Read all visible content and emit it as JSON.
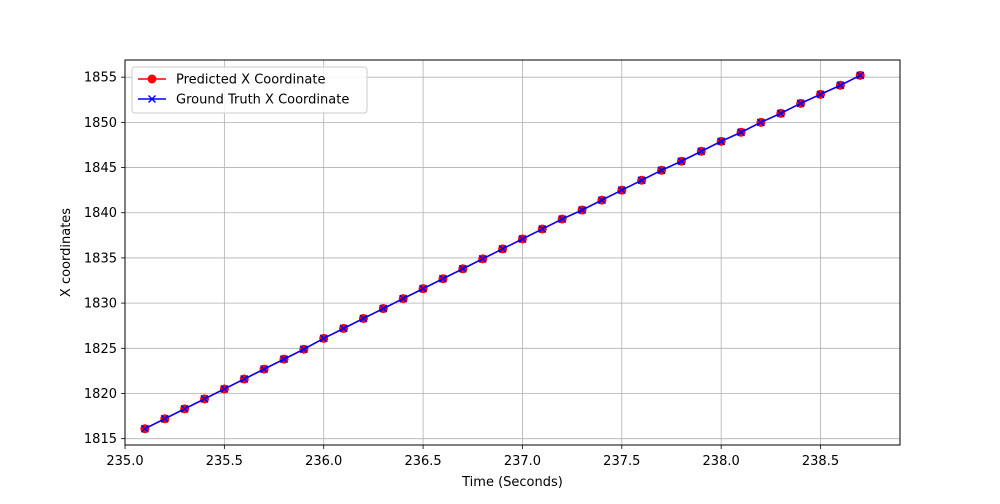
{
  "chart_data": {
    "type": "line",
    "xlabel": "Time (Seconds)",
    "ylabel": "X coordinates",
    "xlim": [
      235.0,
      238.9
    ],
    "ylim": [
      1814.3,
      1856.9
    ],
    "xticks": [
      235.0,
      235.5,
      236.0,
      236.5,
      237.0,
      237.5,
      238.0,
      238.5
    ],
    "xtick_labels": [
      "235.0",
      "235.5",
      "236.0",
      "236.5",
      "237.0",
      "237.5",
      "238.0",
      "238.5"
    ],
    "yticks": [
      1815,
      1820,
      1825,
      1830,
      1835,
      1840,
      1845,
      1850,
      1855
    ],
    "ytick_labels": [
      "1815",
      "1820",
      "1825",
      "1830",
      "1835",
      "1840",
      "1845",
      "1850",
      "1855"
    ],
    "grid": true,
    "legend_position": "upper-left",
    "x": [
      235.1,
      235.2,
      235.3,
      235.4,
      235.5,
      235.6,
      235.7,
      235.8,
      235.9,
      236.0,
      236.1,
      236.2,
      236.3,
      236.4,
      236.5,
      236.6,
      236.7,
      236.8,
      236.9,
      237.0,
      237.1,
      237.2,
      237.3,
      237.4,
      237.5,
      237.6,
      237.7,
      237.8,
      237.9,
      238.0,
      238.1,
      238.2,
      238.3,
      238.4,
      238.5,
      238.6,
      238.7
    ],
    "series": [
      {
        "name": "Predicted X Coordinate",
        "color": "#ff0000",
        "marker": "circle",
        "values": [
          1816.1,
          1817.2,
          1818.3,
          1819.4,
          1820.5,
          1821.6,
          1822.7,
          1823.8,
          1824.9,
          1826.1,
          1827.2,
          1828.3,
          1829.4,
          1830.5,
          1831.6,
          1832.7,
          1833.8,
          1834.9,
          1836.0,
          1837.1,
          1838.2,
          1839.3,
          1840.3,
          1841.4,
          1842.5,
          1843.6,
          1844.7,
          1845.7,
          1846.8,
          1847.9,
          1848.9,
          1850.0,
          1851.0,
          1852.1,
          1853.1,
          1854.1,
          1855.2
        ]
      },
      {
        "name": "Ground Truth X Coordinate",
        "color": "#0000ff",
        "marker": "x",
        "values": [
          1816.1,
          1817.2,
          1818.3,
          1819.4,
          1820.5,
          1821.6,
          1822.7,
          1823.8,
          1824.9,
          1826.1,
          1827.2,
          1828.3,
          1829.4,
          1830.5,
          1831.6,
          1832.7,
          1833.8,
          1834.9,
          1836.0,
          1837.1,
          1838.2,
          1839.3,
          1840.3,
          1841.4,
          1842.5,
          1843.6,
          1844.7,
          1845.7,
          1846.8,
          1847.9,
          1848.9,
          1850.0,
          1851.0,
          1852.1,
          1853.1,
          1854.1,
          1855.2
        ]
      }
    ]
  }
}
